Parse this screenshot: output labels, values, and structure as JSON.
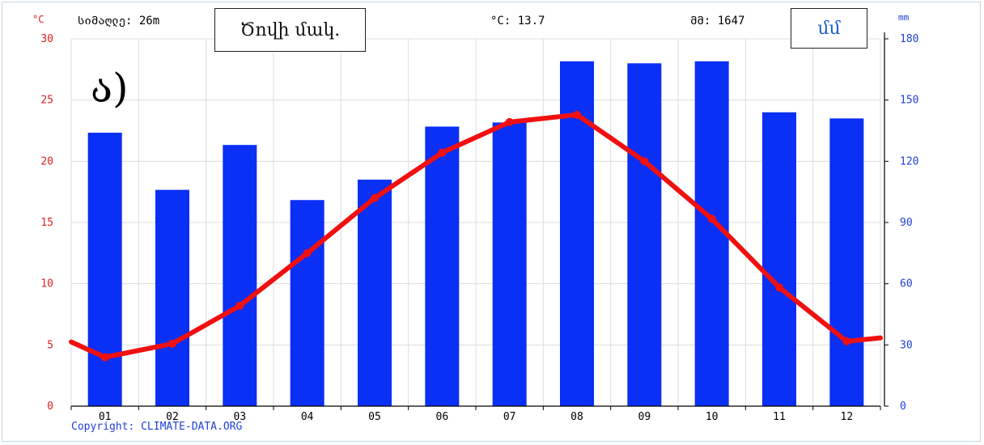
{
  "header": {
    "temp_unit": "°C",
    "precip_unit": "mm",
    "altitude_text": "სიმაღლე: 26m",
    "avg_temp_text": "°C: 13.7",
    "annual_precip_text": "მმ: 1647"
  },
  "overlay": {
    "period_label": "Ծովի մակ.",
    "unit_label": "մմ",
    "panel_letter": "ა)"
  },
  "footer": {
    "copyright": "Copyright: CLIMATE-DATA.ORG"
  },
  "colors": {
    "bars": "#0a2ff5",
    "line": "#f01010",
    "left_axis_text": "#e02020",
    "right_axis_text": "#1f3fd8",
    "grid": "#dcdcdc",
    "axis": "#000000",
    "copyright": "#1f3fd8"
  },
  "chart_data": {
    "type": "bar",
    "categories": [
      "01",
      "02",
      "03",
      "04",
      "05",
      "06",
      "07",
      "08",
      "09",
      "10",
      "11",
      "12"
    ],
    "series": [
      {
        "type": "bar",
        "axis": "right",
        "values": [
          134,
          106,
          128,
          101,
          111,
          137,
          139,
          169,
          168,
          169,
          144,
          141
        ]
      },
      {
        "type": "line",
        "axis": "left",
        "values": [
          4.0,
          5.1,
          8.2,
          12.5,
          17.0,
          20.7,
          23.2,
          23.8,
          20.0,
          15.3,
          9.7,
          5.3
        ]
      }
    ],
    "left_axis": {
      "label": "°C",
      "ylim": [
        0,
        30
      ],
      "ticks": [
        0,
        5,
        10,
        15,
        20,
        25,
        30
      ]
    },
    "right_axis": {
      "label": "mm",
      "ylim": [
        0,
        180
      ],
      "ticks": [
        0,
        30,
        60,
        90,
        120,
        150,
        180
      ]
    },
    "grid": true,
    "legend": "none"
  }
}
